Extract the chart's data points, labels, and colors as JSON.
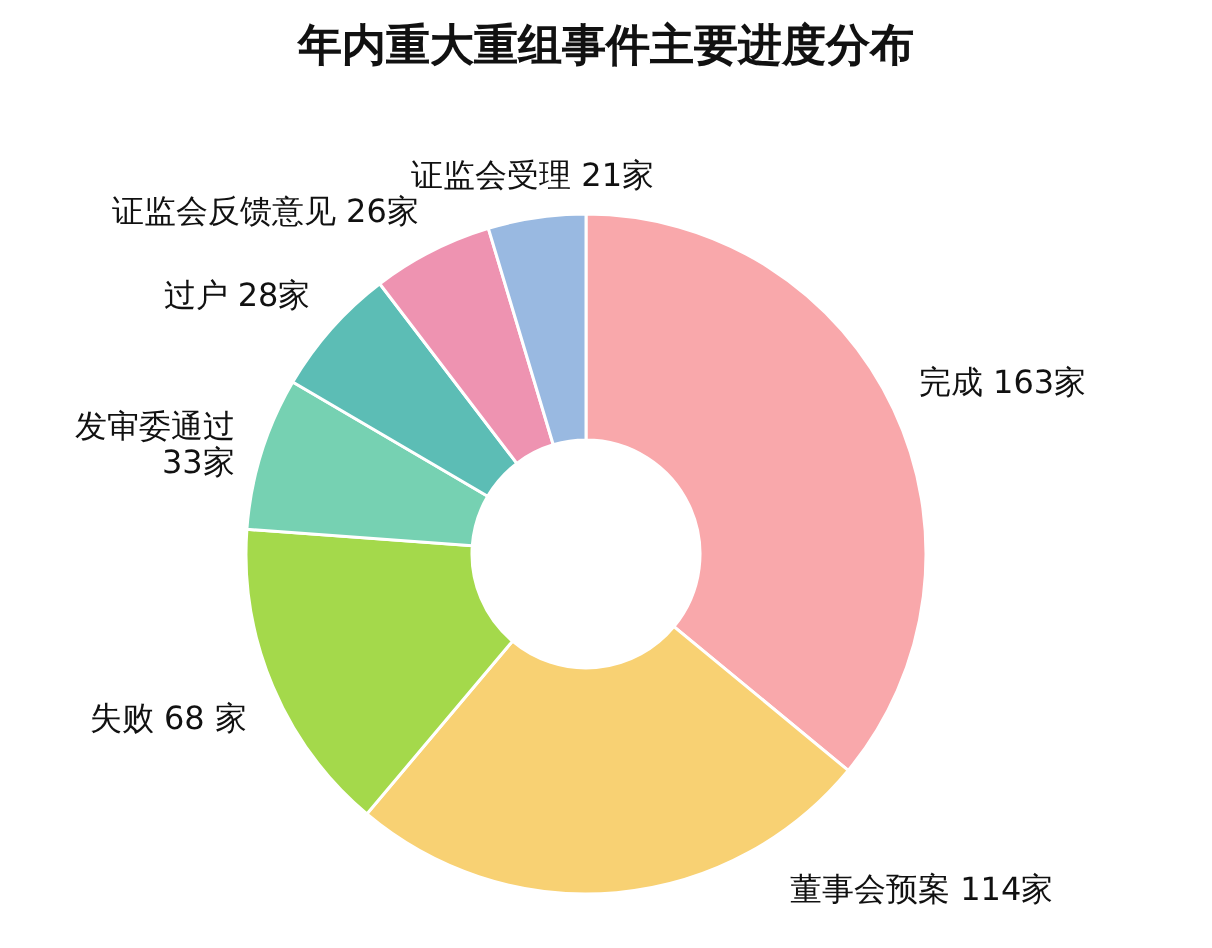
{
  "chart_data": {
    "type": "donut",
    "title": "年内重大重组事件主要进度分布",
    "categories": [
      "完成",
      "董事会预案",
      "失败",
      "发审委通过",
      "过户",
      "证监会反馈意见",
      "证监会受理"
    ],
    "values": [
      163,
      114,
      68,
      33,
      28,
      26,
      21
    ],
    "value_labels": [
      "163家",
      "114家",
      "68 家",
      "33家",
      "28家",
      "26家",
      "21家"
    ],
    "colors": [
      "#f9a8ab",
      "#f8d173",
      "#a4d94b",
      "#76d1b2",
      "#5cbdb5",
      "#ee93b1",
      "#99b9e1"
    ]
  }
}
